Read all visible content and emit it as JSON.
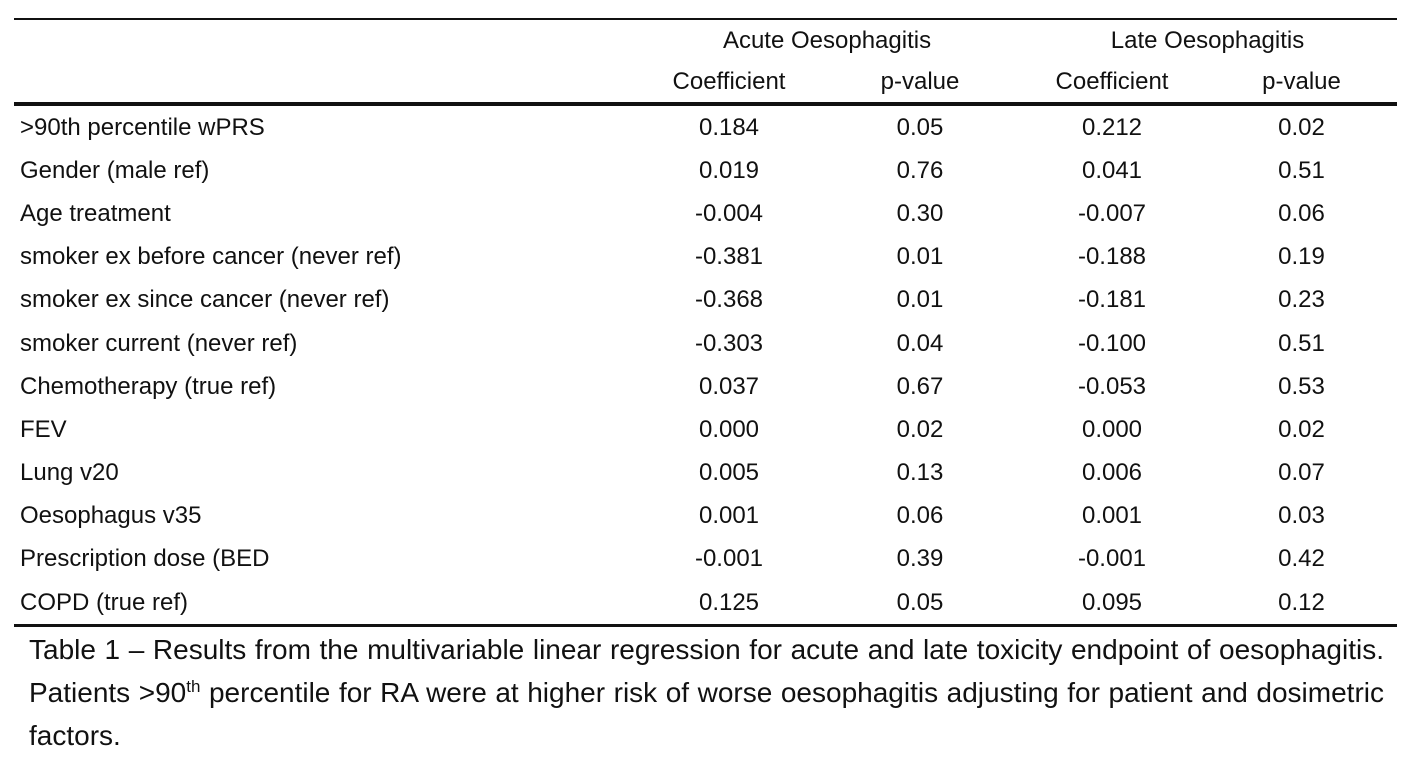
{
  "table": {
    "group_headers": [
      "Acute Oesophagitis",
      "Late Oesophagitis"
    ],
    "column_headers": [
      "",
      "Coefficient",
      "p-value",
      "Coefficient",
      "p-value"
    ],
    "rows": [
      [
        ">90th percentile wPRS",
        "0.184",
        "0.05",
        "0.212",
        "0.02"
      ],
      [
        "Gender (male ref)",
        "0.019",
        "0.76",
        "0.041",
        "0.51"
      ],
      [
        "Age treatment",
        "-0.004",
        "0.30",
        "-0.007",
        "0.06"
      ],
      [
        "smoker ex before cancer (never ref)",
        "-0.381",
        "0.01",
        "-0.188",
        "0.19"
      ],
      [
        "smoker ex since cancer (never ref)",
        "-0.368",
        "0.01",
        "-0.181",
        "0.23"
      ],
      [
        "smoker current (never ref)",
        "-0.303",
        "0.04",
        "-0.100",
        "0.51"
      ],
      [
        "Chemotherapy (true ref)",
        "0.037",
        "0.67",
        "-0.053",
        "0.53"
      ],
      [
        "FEV",
        "0.000",
        "0.02",
        "0.000",
        "0.02"
      ],
      [
        "Lung v20",
        "0.005",
        "0.13",
        "0.006",
        "0.07"
      ],
      [
        "Oesophagus v35",
        "0.001",
        "0.06",
        "0.001",
        "0.03"
      ],
      [
        "Prescription dose (BED",
        "-0.001",
        "0.39",
        "-0.001",
        "0.42"
      ],
      [
        "COPD (true ref)",
        "0.125",
        "0.05",
        "0.095",
        "0.12"
      ]
    ]
  },
  "caption": {
    "part1": "Table 1 – Results from the multivariable linear regression for acute and late toxicity endpoint of oesophagitis. Patients >90",
    "sup": "th",
    "part2": " percentile for RA were at higher risk of worse oesophagitis adjusting for patient and dosimetric factors."
  }
}
